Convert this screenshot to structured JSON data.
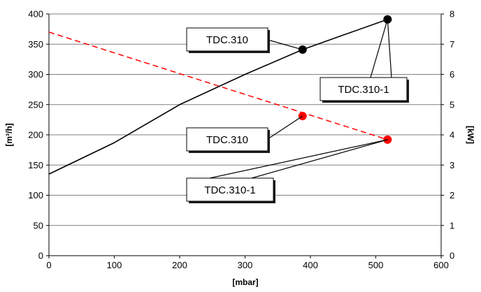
{
  "chart_data": {
    "type": "line",
    "xlabel": "[mbar]",
    "ylabel_left": "[m³/h]",
    "ylabel_right": "[kW]",
    "xlim": [
      0,
      600
    ],
    "ylim_left": [
      0,
      400
    ],
    "ylim_right": [
      0,
      8
    ],
    "x_ticks": [
      "0",
      "100",
      "200",
      "300",
      "400",
      "500",
      "600"
    ],
    "y_left_ticks": [
      "0",
      "50",
      "100",
      "150",
      "200",
      "250",
      "300",
      "350",
      "400"
    ],
    "y_right_ticks": [
      "0",
      "1",
      "2",
      "3",
      "4",
      "5",
      "6",
      "7",
      "8"
    ],
    "grid": "horizontal",
    "colors": {
      "flow": "#000000",
      "power": "#ff0000",
      "grid": "#808080"
    },
    "series": [
      {
        "axis": "left",
        "style": "solid",
        "color": "#000000",
        "x": [
          0,
          100,
          200,
          300,
          388,
          450,
          518
        ],
        "y": [
          135,
          187,
          250,
          300,
          341,
          365,
          391
        ],
        "markers": [
          {
            "x": 388,
            "y": 341,
            "label": "TDC.310"
          },
          {
            "x": 518,
            "y": 391,
            "label": "TDC.310-1"
          }
        ]
      },
      {
        "axis": "right",
        "style": "dashed",
        "color": "#ff0000",
        "x": [
          0,
          518
        ],
        "y": [
          7.4,
          3.84
        ],
        "markers": [
          {
            "x": 388,
            "y": 4.62,
            "label": "TDC.310"
          },
          {
            "x": 518,
            "y": 3.84,
            "label": "TDC.310-1"
          }
        ]
      }
    ],
    "annotations": [
      "TDC.310",
      "TDC.310-1",
      "TDC.310",
      "TDC.310-1"
    ]
  }
}
